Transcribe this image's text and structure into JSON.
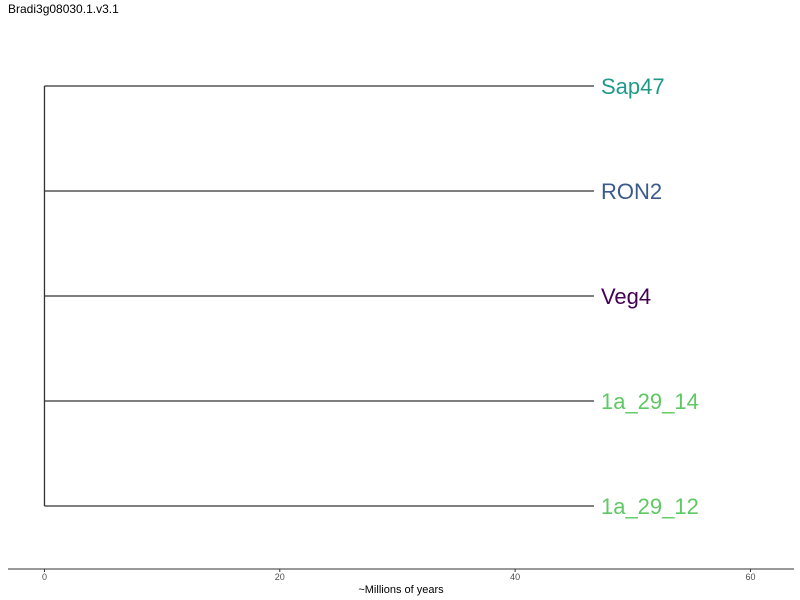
{
  "title": "Bradi3g08030.1.v3.1",
  "chart_data": {
    "type": "tree",
    "xlabel": "~Millions of years",
    "xlim": [
      -3.1,
      63.7
    ],
    "xticks": [
      0,
      20,
      40,
      60
    ],
    "root_x": 0,
    "tips": [
      {
        "label": "Sap47",
        "branch_end": 46.7,
        "color": "#1f9a8a"
      },
      {
        "label": "RON2",
        "branch_end": 46.7,
        "color": "#3b5a8a"
      },
      {
        "label": "Veg4",
        "branch_end": 46.7,
        "color": "#440154"
      },
      {
        "label": "1a_29_14",
        "branch_end": 46.7,
        "color": "#5ec962"
      },
      {
        "label": "1a_29_12",
        "branch_end": 46.7,
        "color": "#5ec962"
      }
    ]
  }
}
